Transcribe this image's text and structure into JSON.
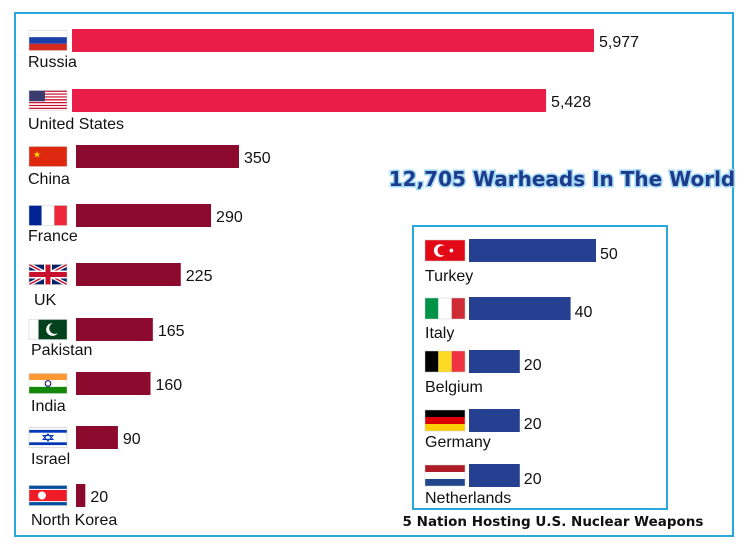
{
  "chart_data": [
    {
      "type": "bar",
      "orientation": "horizontal",
      "title": "12,705 Warheads In The World",
      "colors": {
        "highlight": "#ea1d48",
        "default": "#8b0a2e"
      },
      "categories": [
        "Russia",
        "United States",
        "China",
        "France",
        "UK",
        "Pakistan",
        "India",
        "Israel",
        "North Korea"
      ],
      "values": [
        5977,
        5428,
        350,
        290,
        225,
        165,
        160,
        90,
        20
      ],
      "value_labels": [
        "5,977",
        "5,428",
        "350",
        "290",
        "225",
        "165",
        "160",
        "90",
        "20"
      ],
      "flags": [
        "flag-russia-icon",
        "flag-united-states-icon",
        "flag-china-icon",
        "flag-france-icon",
        "flag-uk-icon",
        "flag-pakistan-icon",
        "flag-india-icon",
        "flag-israel-icon",
        "flag-north-korea-icon"
      ]
    },
    {
      "type": "bar",
      "orientation": "horizontal",
      "title": "5 Nation Hosting U.S. Nuclear Weapons",
      "colors": {
        "default": "#253f91",
        "border": "#2aa7dd"
      },
      "categories": [
        "Turkey",
        "Italy",
        "Belgium",
        "Germany",
        "Netherlands"
      ],
      "values": [
        50,
        40,
        20,
        20,
        20
      ],
      "value_labels": [
        "50",
        "40",
        "20",
        "20",
        "20"
      ],
      "flags": [
        "flag-turkey-icon",
        "flag-italy-icon",
        "flag-belgium-icon",
        "flag-germany-icon",
        "flag-netherlands-icon"
      ]
    }
  ]
}
